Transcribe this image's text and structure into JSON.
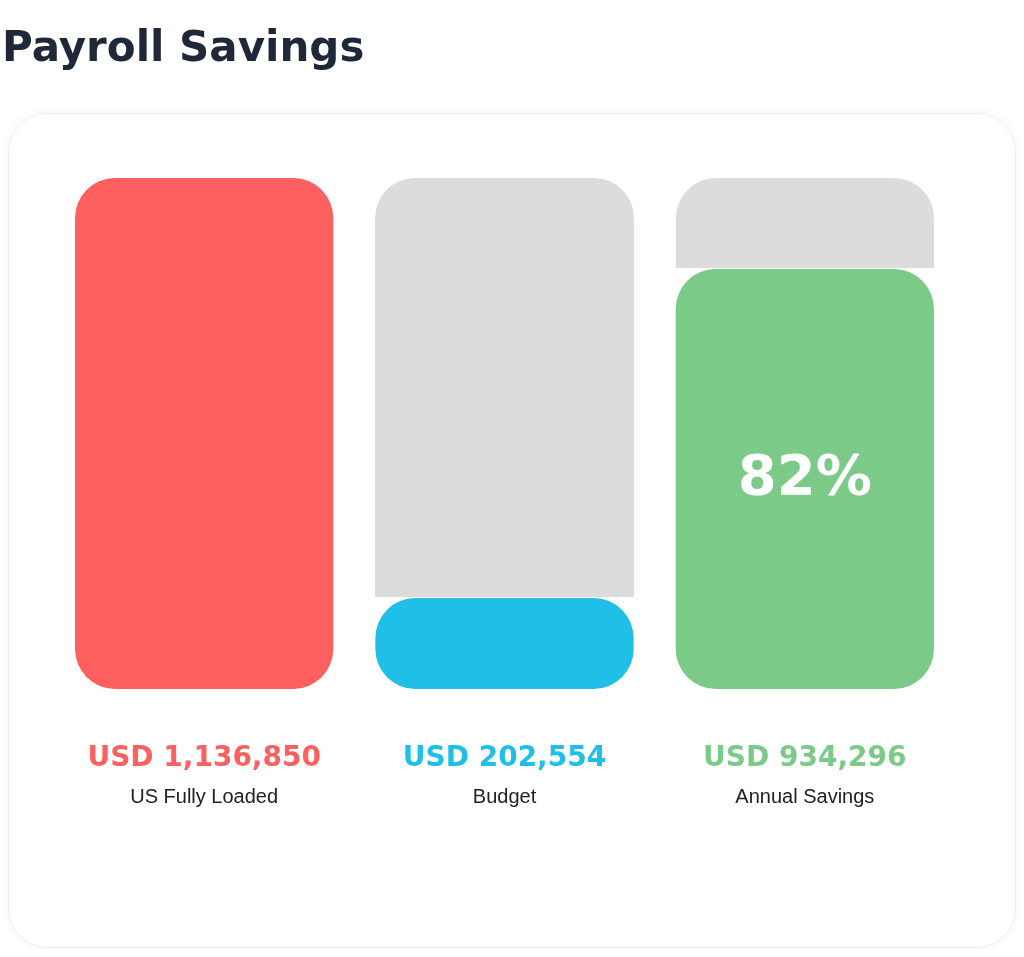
{
  "chart_data": {
    "type": "bar",
    "title": "Payroll Savings",
    "categories": [
      "US Fully Loaded",
      "Budget",
      "Annual Savings"
    ],
    "values": [
      1136850,
      202554,
      934296
    ],
    "colors": [
      "#fe5f5f",
      "#1fbfe8",
      "#7bca87"
    ],
    "value_labels": [
      "USD 1,136,850",
      "USD 202,554",
      "USD 934,296"
    ],
    "annotations": [
      "82%"
    ],
    "grid": false,
    "legend": false
  }
}
